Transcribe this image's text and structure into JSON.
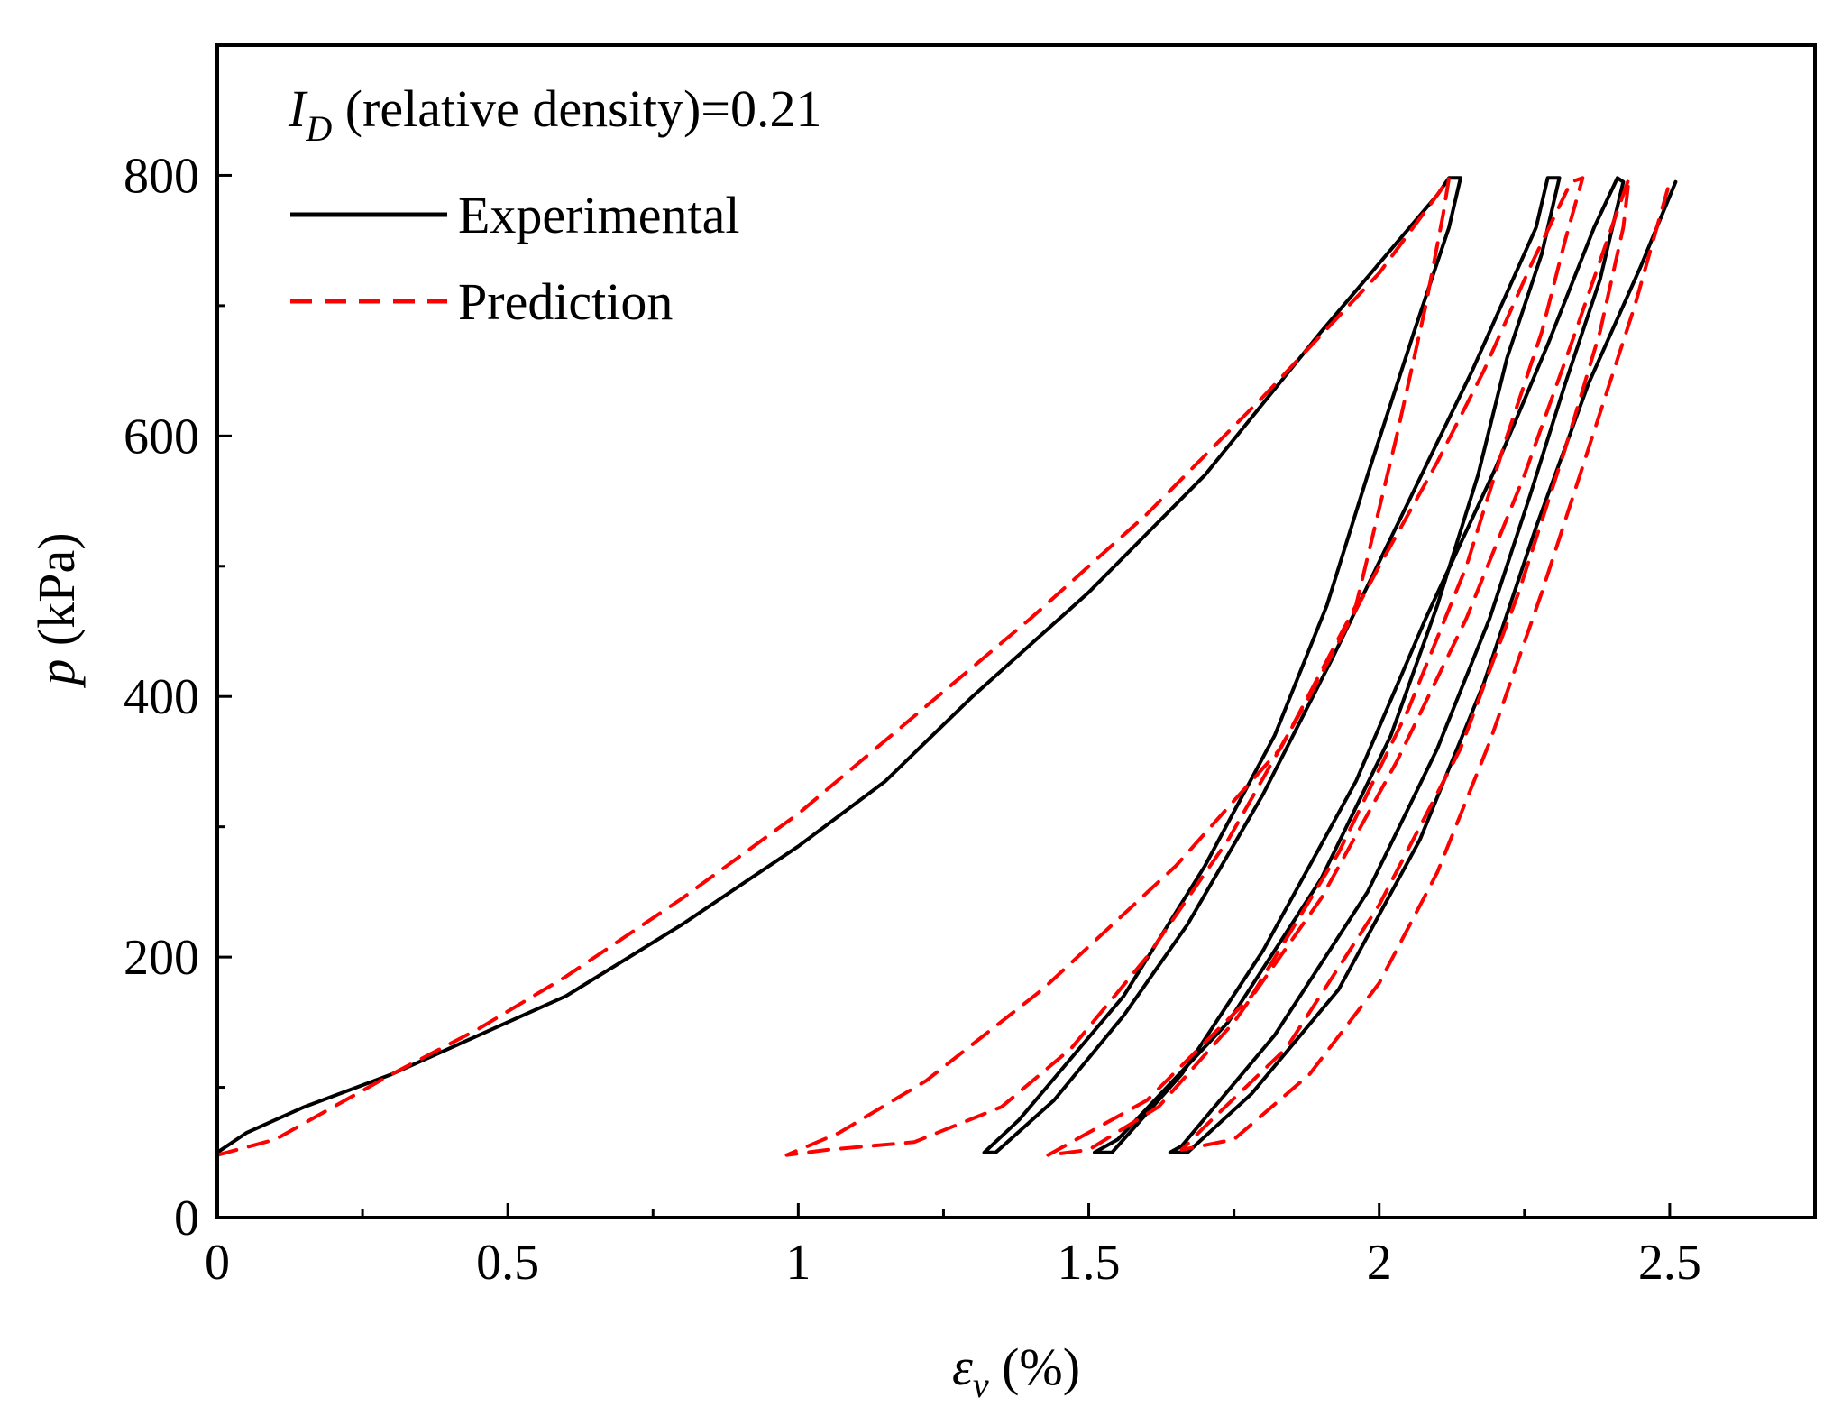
{
  "chart_data": {
    "type": "line",
    "annotation": {
      "symbol": "I",
      "subscript": "D",
      "text": " (relative density)=0.21"
    },
    "xlabel": {
      "symbol": "ε",
      "subscript": "v",
      "unit": " (%)"
    },
    "ylabel": {
      "symbol": "p",
      "unit": " (kPa)"
    },
    "xlim": [
      0,
      2.75
    ],
    "ylim": [
      0,
      900
    ],
    "x_ticks": [
      0,
      0.5,
      1,
      1.5,
      2,
      2.5
    ],
    "x_tick_labels": [
      "0",
      "0.5",
      "1",
      "1.5",
      "2",
      "2.5"
    ],
    "y_ticks": [
      0,
      200,
      400,
      600,
      800
    ],
    "y_tick_labels": [
      "0",
      "200",
      "400",
      "600",
      "800"
    ],
    "legend_position": "top-left",
    "series": [
      {
        "name": "Experimental",
        "color": "#000000",
        "style": "solid",
        "points": [
          [
            0,
            50
          ],
          [
            0.05,
            65
          ],
          [
            0.15,
            85
          ],
          [
            0.3,
            110
          ],
          [
            0.45,
            140
          ],
          [
            0.6,
            170
          ],
          [
            0.8,
            225
          ],
          [
            1.0,
            285
          ],
          [
            1.15,
            335
          ],
          [
            1.3,
            400
          ],
          [
            1.5,
            480
          ],
          [
            1.7,
            570
          ],
          [
            1.9,
            680
          ],
          [
            2.1,
            785
          ],
          [
            2.12,
            798
          ],
          [
            2.14,
            798
          ],
          [
            2.12,
            760
          ],
          [
            2.06,
            680
          ],
          [
            1.98,
            570
          ],
          [
            1.91,
            470
          ],
          [
            1.82,
            370
          ],
          [
            1.7,
            270
          ],
          [
            1.56,
            170
          ],
          [
            1.38,
            75
          ],
          [
            1.32,
            50
          ],
          [
            1.34,
            50
          ],
          [
            1.44,
            90
          ],
          [
            1.56,
            155
          ],
          [
            1.67,
            225
          ],
          [
            1.8,
            325
          ],
          [
            1.92,
            430
          ],
          [
            2.04,
            540
          ],
          [
            2.16,
            650
          ],
          [
            2.27,
            760
          ],
          [
            2.29,
            798
          ],
          [
            2.31,
            798
          ],
          [
            2.28,
            740
          ],
          [
            2.22,
            660
          ],
          [
            2.17,
            570
          ],
          [
            2.1,
            470
          ],
          [
            2.02,
            370
          ],
          [
            1.9,
            260
          ],
          [
            1.74,
            150
          ],
          [
            1.55,
            60
          ],
          [
            1.51,
            50
          ],
          [
            1.54,
            50
          ],
          [
            1.66,
            110
          ],
          [
            1.8,
            205
          ],
          [
            1.96,
            335
          ],
          [
            2.08,
            460
          ],
          [
            2.2,
            575
          ],
          [
            2.29,
            670
          ],
          [
            2.37,
            760
          ],
          [
            2.41,
            798
          ],
          [
            2.42,
            795
          ],
          [
            2.38,
            720
          ],
          [
            2.32,
            640
          ],
          [
            2.26,
            555
          ],
          [
            2.19,
            460
          ],
          [
            2.1,
            360
          ],
          [
            1.98,
            250
          ],
          [
            1.82,
            140
          ],
          [
            1.66,
            55
          ],
          [
            1.64,
            50
          ],
          [
            1.67,
            50
          ],
          [
            1.78,
            95
          ],
          [
            1.93,
            175
          ],
          [
            2.07,
            290
          ],
          [
            2.18,
            410
          ],
          [
            2.27,
            530
          ],
          [
            2.36,
            640
          ],
          [
            2.45,
            730
          ],
          [
            2.51,
            795
          ]
        ]
      },
      {
        "name": "Prediction",
        "color": "#ff0000",
        "style": "dashed",
        "points": [
          [
            0,
            48
          ],
          [
            0.1,
            60
          ],
          [
            0.2,
            85
          ],
          [
            0.3,
            110
          ],
          [
            0.45,
            145
          ],
          [
            0.6,
            185
          ],
          [
            0.8,
            245
          ],
          [
            1.0,
            310
          ],
          [
            1.2,
            385
          ],
          [
            1.4,
            460
          ],
          [
            1.6,
            540
          ],
          [
            1.8,
            630
          ],
          [
            2.0,
            725
          ],
          [
            2.1,
            785
          ],
          [
            2.12,
            798
          ],
          [
            2.11,
            770
          ],
          [
            2.08,
            700
          ],
          [
            2.03,
            600
          ],
          [
            1.96,
            470
          ],
          [
            1.83,
            360
          ],
          [
            1.65,
            270
          ],
          [
            1.42,
            175
          ],
          [
            1.22,
            105
          ],
          [
            1.07,
            65
          ],
          [
            0.98,
            48
          ],
          [
            1.05,
            52
          ],
          [
            1.2,
            58
          ],
          [
            1.35,
            85
          ],
          [
            1.47,
            130
          ],
          [
            1.6,
            200
          ],
          [
            1.74,
            290
          ],
          [
            1.88,
            400
          ],
          [
            2.0,
            500
          ],
          [
            2.1,
            580
          ],
          [
            2.18,
            650
          ],
          [
            2.26,
            730
          ],
          [
            2.33,
            795
          ],
          [
            2.35,
            798
          ],
          [
            2.32,
            750
          ],
          [
            2.28,
            680
          ],
          [
            2.22,
            600
          ],
          [
            2.15,
            500
          ],
          [
            2.05,
            390
          ],
          [
            1.93,
            280
          ],
          [
            1.78,
            170
          ],
          [
            1.6,
            90
          ],
          [
            1.43,
            48
          ],
          [
            1.5,
            52
          ],
          [
            1.62,
            85
          ],
          [
            1.75,
            150
          ],
          [
            1.9,
            245
          ],
          [
            2.03,
            350
          ],
          [
            2.15,
            460
          ],
          [
            2.25,
            570
          ],
          [
            2.33,
            670
          ],
          [
            2.4,
            760
          ],
          [
            2.43,
            798
          ],
          [
            2.42,
            760
          ],
          [
            2.38,
            680
          ],
          [
            2.32,
            590
          ],
          [
            2.24,
            480
          ],
          [
            2.14,
            360
          ],
          [
            2.0,
            240
          ],
          [
            1.84,
            130
          ],
          [
            1.7,
            70
          ],
          [
            1.66,
            52
          ],
          [
            1.75,
            60
          ],
          [
            1.88,
            110
          ],
          [
            2.0,
            180
          ],
          [
            2.1,
            265
          ],
          [
            2.19,
            365
          ],
          [
            2.28,
            480
          ],
          [
            2.36,
            590
          ],
          [
            2.44,
            700
          ],
          [
            2.5,
            795
          ]
        ]
      }
    ]
  }
}
